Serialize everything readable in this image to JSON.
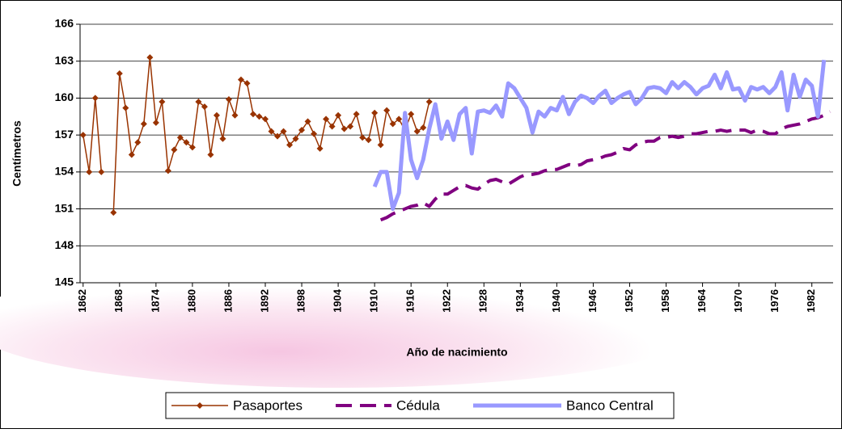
{
  "chart_data": {
    "type": "line",
    "x_label": "Año de nacimiento",
    "y_label": "Centímetros",
    "xlim": [
      1861.5,
      1985.5
    ],
    "xticks": [
      1862,
      1868,
      1874,
      1880,
      1886,
      1892,
      1898,
      1904,
      1910,
      1916,
      1922,
      1928,
      1934,
      1940,
      1946,
      1952,
      1958,
      1964,
      1970,
      1976,
      1982
    ],
    "ylim": [
      145,
      166
    ],
    "yticks": [
      145,
      148,
      151,
      154,
      157,
      160,
      163,
      166
    ],
    "grid": true,
    "legend": "bottom",
    "series": [
      {
        "name": "Pasaportes",
        "color": "#993300",
        "style": "line-diamond",
        "x": [
          1862,
          1863,
          1864,
          1865,
          1866,
          1867,
          1868,
          1869,
          1870,
          1871,
          1872,
          1873,
          1874,
          1875,
          1876,
          1877,
          1878,
          1879,
          1880,
          1881,
          1882,
          1883,
          1884,
          1885,
          1886,
          1887,
          1888,
          1889,
          1890,
          1891,
          1892,
          1893,
          1894,
          1895,
          1896,
          1897,
          1898,
          1899,
          1900,
          1901,
          1902,
          1903,
          1904,
          1905,
          1906,
          1907,
          1908,
          1909,
          1910,
          1911,
          1912,
          1913,
          1914,
          1915,
          1916,
          1917,
          1918,
          1919
        ],
        "values": [
          157.0,
          154.0,
          160.0,
          154.0,
          null,
          150.7,
          162.0,
          159.2,
          155.4,
          156.4,
          157.9,
          163.3,
          158.0,
          159.7,
          154.1,
          155.8,
          156.8,
          156.4,
          156.0,
          159.7,
          159.3,
          155.4,
          158.6,
          156.7,
          159.9,
          158.6,
          161.5,
          161.2,
          158.7,
          158.5,
          158.3,
          157.3,
          156.9,
          157.3,
          156.2,
          156.7,
          157.4,
          158.1,
          157.1,
          155.9,
          158.3,
          157.7,
          158.6,
          157.5,
          157.7,
          158.7,
          156.8,
          156.6,
          158.8,
          156.2,
          159.0,
          157.9,
          158.3,
          157.4,
          158.7,
          157.3,
          157.6,
          159.7
        ]
      },
      {
        "name": "Cédula",
        "color": "#800080",
        "style": "dashed",
        "x": [
          1911,
          1912,
          1913,
          1914,
          1915,
          1916,
          1917,
          1918,
          1919,
          1920,
          1921,
          1922,
          1923,
          1924,
          1925,
          1926,
          1927,
          1928,
          1929,
          1930,
          1931,
          1932,
          1933,
          1934,
          1935,
          1936,
          1937,
          1938,
          1939,
          1940,
          1941,
          1942,
          1943,
          1944,
          1945,
          1946,
          1947,
          1948,
          1949,
          1950,
          1951,
          1952,
          1953,
          1954,
          1955,
          1956,
          1957,
          1958,
          1959,
          1960,
          1961,
          1962,
          1963,
          1964,
          1965,
          1966,
          1967,
          1968,
          1969,
          1970,
          1971,
          1972,
          1973,
          1974,
          1975,
          1976,
          1977,
          1978,
          1979,
          1980,
          1981,
          1982,
          1983,
          1984,
          1985
        ],
        "values": [
          150.1,
          150.3,
          150.6,
          150.8,
          151.0,
          151.2,
          151.3,
          151.5,
          151.2,
          151.8,
          152.2,
          152.2,
          152.5,
          152.8,
          152.9,
          152.7,
          152.6,
          153.0,
          153.3,
          153.4,
          153.2,
          153.0,
          153.3,
          153.6,
          153.8,
          153.8,
          153.9,
          154.1,
          154.2,
          154.2,
          154.4,
          154.6,
          154.5,
          154.6,
          154.9,
          155.0,
          155.1,
          155.3,
          155.4,
          155.6,
          155.9,
          155.8,
          156.2,
          156.4,
          156.5,
          156.5,
          156.8,
          156.8,
          156.9,
          156.8,
          156.9,
          157.1,
          157.1,
          157.2,
          157.3,
          157.3,
          157.4,
          157.3,
          157.4,
          157.4,
          157.4,
          157.2,
          157.4,
          157.3,
          157.1,
          157.1,
          157.5,
          157.7,
          157.8,
          157.9,
          158.1,
          158.3,
          158.4,
          158.6,
          158.9
        ]
      },
      {
        "name": "Banco Central",
        "color": "#9999ff",
        "style": "thick",
        "x": [
          1910,
          1911,
          1912,
          1913,
          1914,
          1915,
          1916,
          1917,
          1918,
          1919,
          1920,
          1921,
          1922,
          1923,
          1924,
          1925,
          1926,
          1927,
          1928,
          1929,
          1930,
          1931,
          1932,
          1933,
          1934,
          1935,
          1936,
          1937,
          1938,
          1939,
          1940,
          1941,
          1942,
          1943,
          1944,
          1945,
          1946,
          1947,
          1948,
          1949,
          1950,
          1951,
          1952,
          1953,
          1954,
          1955,
          1956,
          1957,
          1958,
          1959,
          1960,
          1961,
          1962,
          1963,
          1964,
          1965,
          1966,
          1967,
          1968,
          1969,
          1970,
          1971,
          1972,
          1973,
          1974,
          1975,
          1976,
          1977,
          1978,
          1979,
          1980,
          1981,
          1982,
          1983,
          1984
        ],
        "values": [
          152.8,
          154.0,
          154.0,
          151.0,
          152.3,
          158.8,
          155.0,
          153.5,
          155.0,
          157.5,
          159.5,
          156.7,
          158.1,
          156.6,
          158.7,
          159.2,
          155.5,
          158.9,
          159.0,
          158.8,
          159.4,
          158.5,
          161.2,
          160.8,
          160.0,
          159.2,
          157.2,
          158.9,
          158.5,
          159.2,
          159.0,
          160.1,
          158.7,
          159.7,
          160.2,
          160.0,
          159.6,
          160.2,
          160.6,
          159.6,
          160.0,
          160.3,
          160.5,
          159.5,
          160.0,
          160.8,
          160.9,
          160.8,
          160.4,
          161.3,
          160.8,
          161.3,
          160.9,
          160.3,
          160.8,
          161.0,
          161.9,
          160.8,
          162.1,
          160.7,
          160.8,
          159.8,
          160.9,
          160.7,
          160.9,
          160.4,
          160.9,
          162.1,
          159.0,
          161.9,
          160.1,
          161.5,
          161.0,
          158.5,
          163.1
        ]
      }
    ]
  }
}
